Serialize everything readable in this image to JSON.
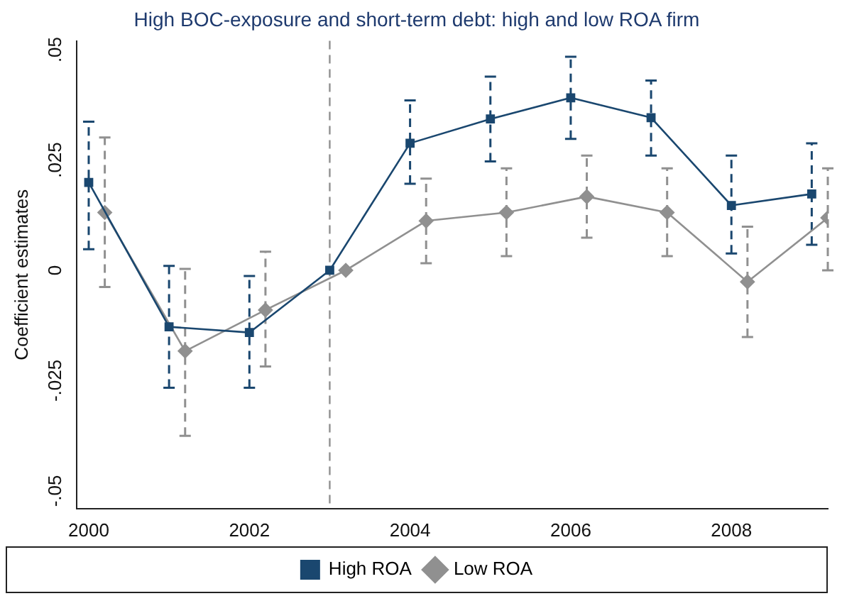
{
  "chart_data": {
    "type": "line",
    "title": "High BOC-exposure and short-term debt: high and low ROA firm",
    "ylabel": "Coefficient estimates",
    "xlim": [
      1999.85,
      2009.2
    ],
    "xticks": [
      2000,
      2002,
      2004,
      2006,
      2008
    ],
    "ylim": [
      -0.054,
      0.052
    ],
    "yticks": [
      {
        "value": -0.05,
        "label": "-.05"
      },
      {
        "value": -0.025,
        "label": "-.025"
      },
      {
        "value": 0,
        "label": "0"
      },
      {
        "value": 0.025,
        "label": ".025"
      },
      {
        "value": 0.05,
        "label": ".05"
      }
    ],
    "grid": false,
    "legend": "bottom",
    "line_style": "solid",
    "ref_lines": [
      {
        "axis": "x",
        "value": 2003,
        "color": "#909090",
        "line_style": "dashed"
      }
    ],
    "series": [
      {
        "name": "High ROA",
        "color": "#1a476f",
        "marker": "square",
        "x": [
          2000,
          2001,
          2002,
          2003,
          2004,
          2005,
          2006,
          2007,
          2008,
          2009
        ],
        "values": [
          0.0199,
          -0.0128,
          -0.0141,
          0,
          0.0288,
          0.0343,
          0.0391,
          0.0346,
          0.0147,
          0.0173
        ],
        "errors": [
          [
            0.0048,
            0.0337
          ],
          [
            -0.0266,
            0.001
          ],
          [
            -0.0266,
            -0.0013
          ],
          null,
          [
            0.0196,
            0.0385
          ],
          [
            0.0247,
            0.0439
          ],
          [
            0.0298,
            0.0484
          ],
          [
            0.026,
            0.043
          ],
          [
            0.0038,
            0.026
          ],
          [
            0.0058,
            0.0288
          ]
        ]
      },
      {
        "name": "Low ROA",
        "color": "#909090",
        "marker": "diamond",
        "x": [
          2000.2,
          2001.2,
          2002.2,
          2003.2,
          2004.2,
          2005.2,
          2006.2,
          2007.2,
          2008.2,
          2009.2
        ],
        "values": [
          0.0131,
          -0.0183,
          -0.009,
          0,
          0.0112,
          0.0131,
          0.0167,
          0.0131,
          -0.0026,
          0.0119
        ],
        "errors": [
          [
            -0.0038,
            0.0301
          ],
          [
            -0.0375,
            0.0003
          ],
          [
            -0.0218,
            0.0042
          ],
          null,
          [
            0.0016,
            0.0208
          ],
          [
            0.0032,
            0.0231
          ],
          [
            0.0074,
            0.026
          ],
          [
            0.0032,
            0.0231
          ],
          [
            -0.0151,
            0.0099
          ],
          [
            0,
            0.0231
          ]
        ]
      }
    ]
  }
}
